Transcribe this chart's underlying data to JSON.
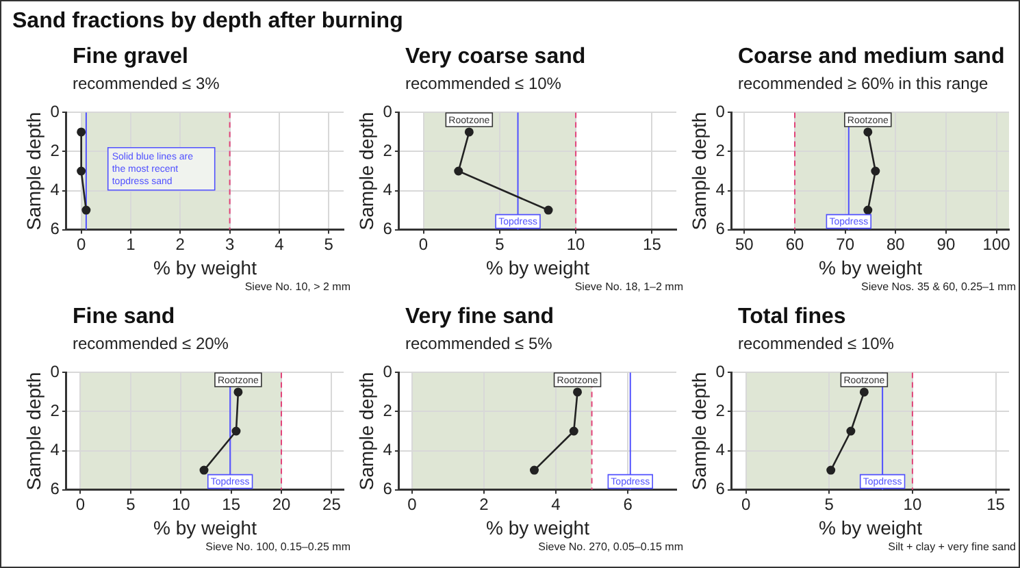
{
  "chart_data": [
    {
      "type": "other",
      "title": "Sand fractions by depth after burning"
    },
    {
      "type": "line",
      "title": "Fine gravel",
      "subtitle": "recommended ≤ 3%",
      "xlabel": "% by weight",
      "ylabel": "Sample depth",
      "xlim": [
        -0.3,
        5.3
      ],
      "xticks": [
        0,
        1,
        2,
        3,
        4,
        5
      ],
      "ylim": [
        6,
        0
      ],
      "yticks": [
        0,
        2,
        4,
        6
      ],
      "grid": true,
      "legend": false,
      "marker": "circle",
      "series": [
        {
          "color": "#222222",
          "x": [
            0,
            0,
            0.1
          ],
          "values": [
            1,
            3,
            5
          ]
        }
      ],
      "bands": [
        {
          "axis": "x",
          "from": 0,
          "to": 3,
          "color": "#dfe6d5"
        }
      ],
      "ref_lines": [
        {
          "axis": "x",
          "value": 3,
          "color": "#e2437a",
          "line_style": "dashed"
        },
        {
          "axis": "x",
          "value": 0.1,
          "color": "#5050ff",
          "line_style": "solid"
        }
      ],
      "annotations": [
        "Solid blue lines are the most recent topdress sand",
        "Sieve No. 10, > 2 mm"
      ]
    },
    {
      "type": "line",
      "title": "Very coarse sand",
      "subtitle": "recommended ≤ 10%",
      "xlabel": "% by weight",
      "ylabel": "Sample depth",
      "xlim": [
        -1.6,
        16.6
      ],
      "xticks": [
        0,
        5,
        10,
        15
      ],
      "ylim": [
        6,
        0
      ],
      "yticks": [
        0,
        2,
        4,
        6
      ],
      "grid": true,
      "legend": false,
      "marker": "circle",
      "series": [
        {
          "color": "#222222",
          "x": [
            3,
            2.3,
            8.2
          ],
          "values": [
            1,
            3,
            5
          ]
        }
      ],
      "bands": [
        {
          "axis": "x",
          "from": 0,
          "to": 10,
          "color": "#dfe6d5"
        }
      ],
      "ref_lines": [
        {
          "axis": "x",
          "value": 10,
          "color": "#e2437a",
          "line_style": "dashed"
        },
        {
          "axis": "x",
          "value": 6.2,
          "color": "#5050ff",
          "line_style": "solid",
          "label": "Topdress"
        }
      ],
      "annotations": [
        {
          "text": "Rootzone",
          "x": 3,
          "y": 1
        },
        "Sieve No. 18, 1–2 mm"
      ]
    },
    {
      "type": "line",
      "title": "Coarse and medium sand",
      "subtitle": "recommended ≥ 60% in this range",
      "xlabel": "% by weight",
      "ylabel": "Sample depth",
      "xlim": [
        47.5,
        102.5
      ],
      "xticks": [
        50,
        60,
        70,
        80,
        90,
        100
      ],
      "ylim": [
        6,
        0
      ],
      "yticks": [
        0,
        2,
        4,
        6
      ],
      "grid": true,
      "legend": false,
      "marker": "circle",
      "series": [
        {
          "color": "#222222",
          "x": [
            74.5,
            76,
            74.5
          ],
          "values": [
            1,
            3,
            5
          ]
        }
      ],
      "bands": [
        {
          "axis": "x",
          "from": 60,
          "to": 102.5,
          "color": "#dfe6d5"
        }
      ],
      "ref_lines": [
        {
          "axis": "x",
          "value": 60,
          "color": "#e2437a",
          "line_style": "dashed"
        },
        {
          "axis": "x",
          "value": 70.7,
          "color": "#5050ff",
          "line_style": "solid",
          "label": "Topdress"
        }
      ],
      "annotations": [
        {
          "text": "Rootzone",
          "x": 74.5,
          "y": 1
        },
        "Sieve Nos. 35 & 60, 0.25–1 mm"
      ]
    },
    {
      "type": "line",
      "title": "Fine sand",
      "subtitle": "recommended ≤ 20%",
      "xlabel": "% by weight",
      "ylabel": "Sample depth",
      "xlim": [
        -1.4,
        26.2
      ],
      "xticks": [
        0,
        5,
        10,
        15,
        20,
        25
      ],
      "ylim": [
        6,
        0
      ],
      "yticks": [
        0,
        2,
        4,
        6
      ],
      "grid": true,
      "legend": false,
      "marker": "circle",
      "series": [
        {
          "color": "#222222",
          "x": [
            15.7,
            15.5,
            12.3
          ],
          "values": [
            1,
            3,
            5
          ]
        }
      ],
      "bands": [
        {
          "axis": "x",
          "from": 0,
          "to": 20,
          "color": "#dfe6d5"
        }
      ],
      "ref_lines": [
        {
          "axis": "x",
          "value": 20,
          "color": "#e2437a",
          "line_style": "dashed"
        },
        {
          "axis": "x",
          "value": 14.9,
          "color": "#5050ff",
          "line_style": "solid",
          "label": "Topdress"
        }
      ],
      "annotations": [
        {
          "text": "Rootzone",
          "x": 15.7,
          "y": 1
        },
        "Sieve No. 100, 0.15–0.25 mm"
      ]
    },
    {
      "type": "line",
      "title": "Very fine sand",
      "subtitle": "recommended ≤ 5%",
      "xlabel": "% by weight",
      "ylabel": "Sample depth",
      "xlim": [
        -0.36,
        7.35
      ],
      "xticks": [
        0,
        2,
        4,
        6
      ],
      "ylim": [
        6,
        0
      ],
      "yticks": [
        0,
        2,
        4,
        6
      ],
      "grid": true,
      "legend": false,
      "marker": "circle",
      "series": [
        {
          "color": "#222222",
          "x": [
            4.6,
            4.5,
            3.4
          ],
          "values": [
            1,
            3,
            5
          ]
        }
      ],
      "bands": [
        {
          "axis": "x",
          "from": 0,
          "to": 5,
          "color": "#dfe6d5"
        }
      ],
      "ref_lines": [
        {
          "axis": "x",
          "value": 5,
          "color": "#e2437a",
          "line_style": "dashed"
        },
        {
          "axis": "x",
          "value": 6.07,
          "color": "#5050ff",
          "line_style": "solid",
          "label": "Topdress"
        }
      ],
      "annotations": [
        {
          "text": "Rootzone",
          "x": 4.6,
          "y": 1
        },
        "Sieve No. 270, 0.05–0.15 mm"
      ]
    },
    {
      "type": "line",
      "title": "Total fines",
      "subtitle": "recommended ≤ 10%",
      "xlabel": "% by weight",
      "ylabel": "Sample depth",
      "xlim": [
        -0.85,
        15.8
      ],
      "xticks": [
        0,
        5,
        10,
        15
      ],
      "ylim": [
        6,
        0
      ],
      "yticks": [
        0,
        2,
        4,
        6
      ],
      "grid": true,
      "legend": false,
      "marker": "circle",
      "series": [
        {
          "color": "#222222",
          "x": [
            7.1,
            6.3,
            5.1
          ],
          "values": [
            1,
            3,
            5
          ]
        }
      ],
      "bands": [
        {
          "axis": "x",
          "from": 0,
          "to": 10,
          "color": "#dfe6d5"
        }
      ],
      "ref_lines": [
        {
          "axis": "x",
          "value": 10,
          "color": "#e2437a",
          "line_style": "dashed"
        },
        {
          "axis": "x",
          "value": 8.2,
          "color": "#5050ff",
          "line_style": "solid",
          "label": "Topdress"
        }
      ],
      "annotations": [
        {
          "text": "Rootzone",
          "x": 7.1,
          "y": 1
        },
        "Silt + clay + very fine sand"
      ]
    }
  ]
}
